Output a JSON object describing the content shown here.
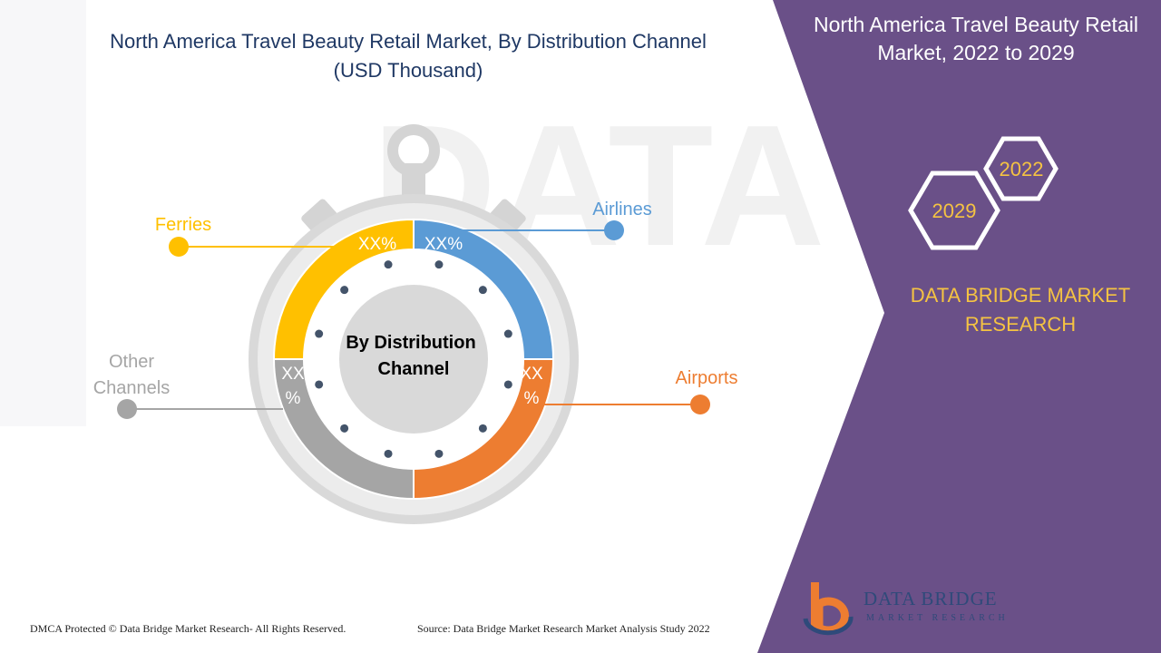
{
  "title": "North America Travel Beauty Retail Market, By Distribution Channel (USD Thousand)",
  "side_panel": {
    "title": "North America Travel Beauty Retail Market, 2022 to 2029",
    "years": [
      "2022",
      "2029"
    ],
    "brand": "DATA BRIDGE MARKET RESEARCH"
  },
  "center_label": "By Distribution Channel",
  "chart_data": {
    "type": "pie",
    "style": "donut",
    "categories": [
      "Airlines",
      "Airports",
      "Other Channels",
      "Ferries"
    ],
    "values": [
      25,
      25,
      25,
      25
    ],
    "data_labels": [
      "XX%",
      "XX%",
      "XX%",
      "XX%"
    ],
    "colors": [
      "#5b9bd5",
      "#ed7d31",
      "#a5a5a5",
      "#ffc000"
    ]
  },
  "watermark": "DATA BRIDGE",
  "footer": {
    "left": "DMCA Protected © Data Bridge Market Research- All Rights Reserved.",
    "right": "Source: Data Bridge Market Research Market Analysis Study 2022"
  },
  "logo": {
    "name": "DATA BRIDGE",
    "sub": "MARKET RESEARCH"
  },
  "colors": {
    "panel": "#6a5088",
    "title": "#1f3864",
    "brand": "#f5c342"
  }
}
